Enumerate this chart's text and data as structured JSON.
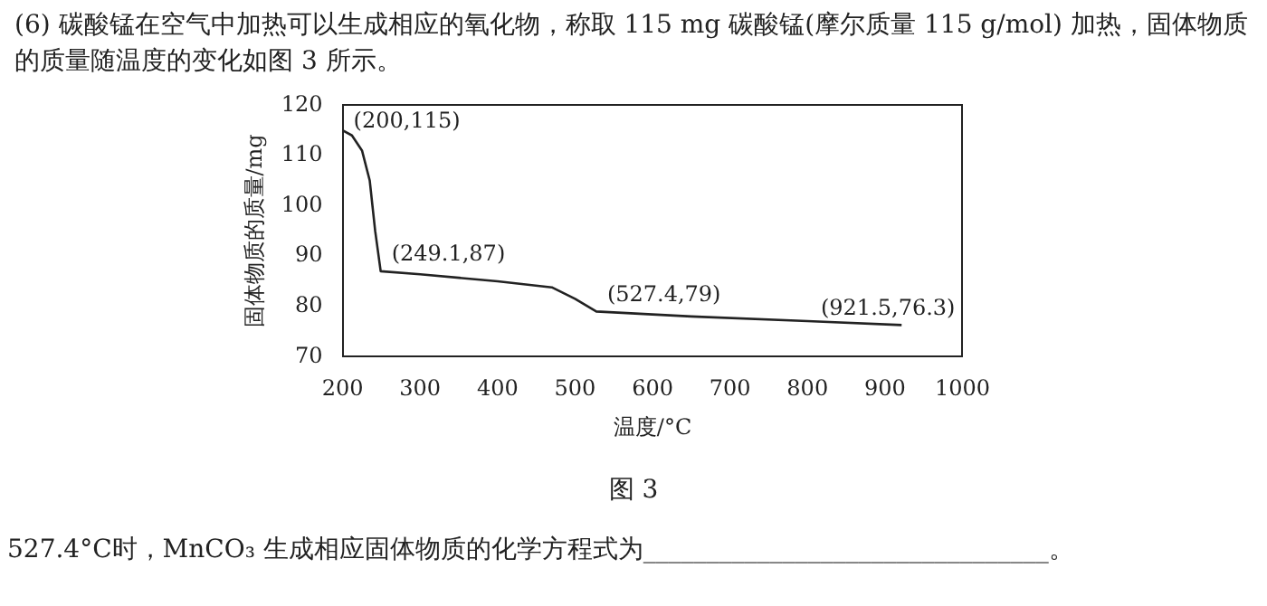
{
  "chart_data": {
    "type": "line",
    "title": "(6) 碳酸锰在空气中加热可以生成相应的氧化物，称取 115 mg 碳酸锰(摩尔质量 115 g/mol) 加热，固体物质的质量随温度的变化如图 3 所示。",
    "xlabel": "温度/°C",
    "ylabel": "固体物质的质量/mg",
    "series": [
      {
        "color": "#222222",
        "x": [
          200,
          212,
          225,
          235,
          242,
          249.1,
          300,
          400,
          470,
          500,
          527.4,
          650,
          800,
          921.5
        ],
        "values": [
          115,
          114,
          111,
          105,
          95,
          87,
          86.4,
          85,
          83.8,
          81.5,
          79,
          78,
          77.1,
          76.3
        ]
      }
    ],
    "xlim": [
      200,
      1000
    ],
    "xticks": [
      200,
      300,
      400,
      500,
      600,
      700,
      800,
      900,
      1000
    ],
    "ylim": [
      70,
      120
    ],
    "yticks": [
      70,
      80,
      90,
      100,
      110,
      120
    ],
    "grid": false,
    "legend": false,
    "marker": "none",
    "line_style": "solid",
    "annotations": [
      {
        "text": "(200,115)",
        "x": 200,
        "y": 115
      },
      {
        "text": "(249.1,87)",
        "x": 249.1,
        "y": 87
      },
      {
        "text": "(527.4,79)",
        "x": 527.4,
        "y": 79
      },
      {
        "text": "(921.5,76.3)",
        "x": 921.5,
        "y": 76.3
      },
      "图 3",
      "527.4°C时，MnCO₃ 生成相应固体物质的化学方程式为________________________________。"
    ]
  }
}
